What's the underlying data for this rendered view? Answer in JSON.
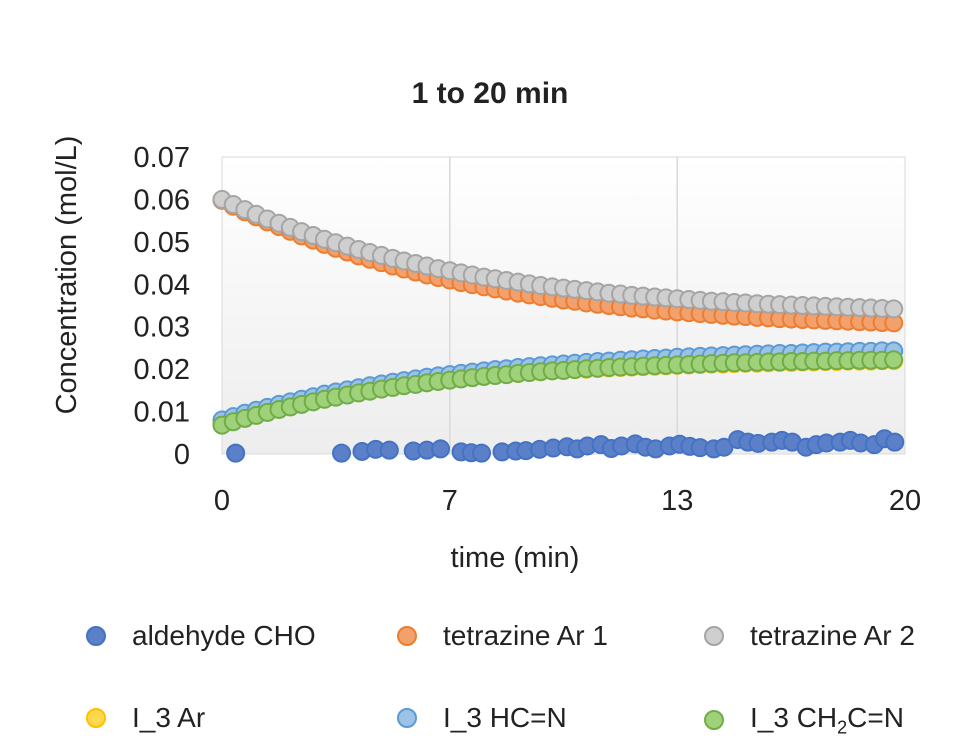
{
  "chart_data": {
    "type": "scatter",
    "title": "1 to 20 min",
    "xlabel": "time (min)",
    "ylabel": "Concentration (mol/L)",
    "xlim": [
      0,
      20
    ],
    "ylim": [
      0,
      0.07
    ],
    "xticks": [
      "0",
      "7",
      "13",
      "20"
    ],
    "xtick_values": [
      0,
      6.67,
      13.33,
      20
    ],
    "yticks": [
      "0",
      "0.01",
      "0.02",
      "0.03",
      "0.04",
      "0.05",
      "0.06",
      "0.07"
    ],
    "ytick_values": [
      0,
      0.01,
      0.02,
      0.03,
      0.04,
      0.05,
      0.06,
      0.07
    ],
    "grid": true,
    "legend_position": "bottom",
    "series": [
      {
        "name": "aldehyde CHO",
        "color": "#4472c4",
        "x": [
          0.4,
          3.5,
          4.1,
          4.5,
          4.9,
          5.6,
          6.0,
          6.4,
          7.0,
          7.3,
          7.6,
          8.2,
          8.6,
          8.9,
          9.3,
          9.7,
          10.1,
          10.4,
          10.7,
          11.1,
          11.4,
          11.7,
          12.1,
          12.4,
          12.7,
          13.1,
          13.4,
          13.7,
          14.0,
          14.4,
          14.7,
          15.1,
          15.4,
          15.7,
          16.1,
          16.4,
          16.7,
          17.1,
          17.4,
          17.7,
          18.1,
          18.4,
          18.7,
          19.1,
          19.4,
          19.7
        ],
        "y": [
          0.0002,
          0.0002,
          0.0006,
          0.0011,
          0.0009,
          0.0007,
          0.0009,
          0.0012,
          0.0005,
          0.0003,
          0.0002,
          0.0005,
          0.0007,
          0.0008,
          0.0011,
          0.0014,
          0.0017,
          0.0012,
          0.0019,
          0.0022,
          0.0013,
          0.0019,
          0.0024,
          0.0016,
          0.0012,
          0.0019,
          0.0023,
          0.0018,
          0.0015,
          0.0012,
          0.0016,
          0.0034,
          0.0028,
          0.0025,
          0.0028,
          0.0032,
          0.0028,
          0.0016,
          0.0022,
          0.0026,
          0.0028,
          0.0032,
          0.0026,
          0.0022,
          0.0036,
          0.0028
        ]
      },
      {
        "name": "tetrazine Ar 1",
        "color": "#ed7d31",
        "x": [
          0.0,
          0.33,
          0.67,
          1.0,
          1.33,
          1.67,
          2.0,
          2.33,
          2.67,
          3.0,
          3.33,
          3.67,
          4.0,
          4.33,
          4.67,
          5.0,
          5.33,
          5.67,
          6.0,
          6.33,
          6.67,
          7.0,
          7.33,
          7.67,
          8.0,
          8.33,
          8.67,
          9.0,
          9.33,
          9.67,
          10.0,
          10.33,
          10.67,
          11.0,
          11.33,
          11.67,
          12.0,
          12.33,
          12.67,
          13.0,
          13.33,
          13.67,
          14.0,
          14.33,
          14.67,
          15.0,
          15.33,
          15.67,
          16.0,
          16.33,
          16.67,
          17.0,
          17.33,
          17.67,
          18.0,
          18.33,
          18.67,
          19.0,
          19.33,
          19.67
        ],
        "y": [
          0.0598,
          0.0584,
          0.0571,
          0.0559,
          0.0547,
          0.0536,
          0.0525,
          0.0514,
          0.0504,
          0.0494,
          0.0485,
          0.0476,
          0.0467,
          0.0459,
          0.0451,
          0.0443,
          0.0436,
          0.0429,
          0.0422,
          0.0416,
          0.041,
          0.0404,
          0.0399,
          0.0394,
          0.0389,
          0.0384,
          0.0379,
          0.0375,
          0.0371,
          0.0367,
          0.0363,
          0.036,
          0.0356,
          0.0353,
          0.035,
          0.0347,
          0.0344,
          0.0342,
          0.0339,
          0.0337,
          0.0335,
          0.0333,
          0.0331,
          0.0329,
          0.0327,
          0.0325,
          0.0324,
          0.0322,
          0.0321,
          0.0319,
          0.0318,
          0.0317,
          0.0316,
          0.0315,
          0.0314,
          0.0313,
          0.0312,
          0.0311,
          0.031,
          0.0309
        ]
      },
      {
        "name": "tetrazine Ar 2",
        "color": "#a5a5a5",
        "x": [
          0.0,
          0.33,
          0.67,
          1.0,
          1.33,
          1.67,
          2.0,
          2.33,
          2.67,
          3.0,
          3.33,
          3.67,
          4.0,
          4.33,
          4.67,
          5.0,
          5.33,
          5.67,
          6.0,
          6.33,
          6.67,
          7.0,
          7.33,
          7.67,
          8.0,
          8.33,
          8.67,
          9.0,
          9.33,
          9.67,
          10.0,
          10.33,
          10.67,
          11.0,
          11.33,
          11.67,
          12.0,
          12.33,
          12.67,
          13.0,
          13.33,
          13.67,
          14.0,
          14.33,
          14.67,
          15.0,
          15.33,
          15.67,
          16.0,
          16.33,
          16.67,
          17.0,
          17.33,
          17.67,
          18.0,
          18.33,
          18.67,
          19.0,
          19.33,
          19.67
        ],
        "y": [
          0.06,
          0.0588,
          0.0576,
          0.0565,
          0.0554,
          0.0544,
          0.0534,
          0.0524,
          0.0515,
          0.0506,
          0.0498,
          0.049,
          0.0482,
          0.0475,
          0.0468,
          0.0461,
          0.0455,
          0.0449,
          0.0443,
          0.0437,
          0.0432,
          0.0427,
          0.0422,
          0.0417,
          0.0413,
          0.0409,
          0.0405,
          0.0401,
          0.0397,
          0.0394,
          0.0391,
          0.0388,
          0.0385,
          0.0382,
          0.0379,
          0.0377,
          0.0374,
          0.0372,
          0.037,
          0.0368,
          0.0366,
          0.0364,
          0.0362,
          0.036,
          0.0359,
          0.0357,
          0.0356,
          0.0354,
          0.0353,
          0.0352,
          0.0351,
          0.035,
          0.0349,
          0.0348,
          0.0347,
          0.0346,
          0.0345,
          0.0344,
          0.0343,
          0.0342
        ]
      },
      {
        "name": "I_3 Ar",
        "color": "#ffc000",
        "x": [
          0.0,
          0.33,
          0.67,
          1.0,
          1.33,
          1.67,
          2.0,
          2.33,
          2.67,
          3.0,
          3.33,
          3.67,
          4.0,
          4.33,
          4.67,
          5.0,
          5.33,
          5.67,
          6.0,
          6.33,
          6.67,
          7.0,
          7.33,
          7.67,
          8.0,
          8.33,
          8.67,
          9.0,
          9.33,
          9.67,
          10.0,
          10.33,
          10.67,
          11.0,
          11.33,
          11.67,
          12.0,
          12.33,
          12.67,
          13.0,
          13.33,
          13.67,
          14.0,
          14.33,
          14.67,
          15.0,
          15.33,
          15.67,
          16.0,
          16.33,
          16.67,
          17.0,
          17.33,
          17.67,
          18.0,
          18.33,
          18.67,
          19.0,
          19.33,
          19.67
        ],
        "y": [
          0.007,
          0.0078,
          0.0086,
          0.0093,
          0.01,
          0.0107,
          0.0113,
          0.0119,
          0.0125,
          0.0131,
          0.0136,
          0.0141,
          0.0146,
          0.015,
          0.0154,
          0.0158,
          0.0162,
          0.0166,
          0.0169,
          0.0172,
          0.0175,
          0.0178,
          0.0181,
          0.0183,
          0.0186,
          0.0188,
          0.019,
          0.0192,
          0.0194,
          0.0196,
          0.0197,
          0.0199,
          0.02,
          0.0202,
          0.0203,
          0.0204,
          0.0205,
          0.0206,
          0.0207,
          0.0208,
          0.0209,
          0.021,
          0.0211,
          0.0212,
          0.0212,
          0.0213,
          0.0214,
          0.0214,
          0.0215,
          0.0216,
          0.0216,
          0.0217,
          0.0217,
          0.0218,
          0.0218,
          0.0219,
          0.0219,
          0.0219,
          0.022,
          0.022
        ]
      },
      {
        "name": "I_3 HC=N",
        "color": "#5b9bd5",
        "x": [
          0.0,
          0.33,
          0.67,
          1.0,
          1.33,
          1.67,
          2.0,
          2.33,
          2.67,
          3.0,
          3.33,
          3.67,
          4.0,
          4.33,
          4.67,
          5.0,
          5.33,
          5.67,
          6.0,
          6.33,
          6.67,
          7.0,
          7.33,
          7.67,
          8.0,
          8.33,
          8.67,
          9.0,
          9.33,
          9.67,
          10.0,
          10.33,
          10.67,
          11.0,
          11.33,
          11.67,
          12.0,
          12.33,
          12.67,
          13.0,
          13.33,
          13.67,
          14.0,
          14.33,
          14.67,
          15.0,
          15.33,
          15.67,
          16.0,
          16.33,
          16.67,
          17.0,
          17.33,
          17.67,
          18.0,
          18.33,
          18.67,
          19.0,
          19.33,
          19.67
        ],
        "y": [
          0.008,
          0.0088,
          0.0096,
          0.0103,
          0.011,
          0.0117,
          0.0123,
          0.0129,
          0.0135,
          0.0141,
          0.0146,
          0.0151,
          0.0156,
          0.0161,
          0.0165,
          0.0169,
          0.0173,
          0.0177,
          0.0181,
          0.0184,
          0.0187,
          0.019,
          0.0193,
          0.0196,
          0.0199,
          0.0201,
          0.0204,
          0.0206,
          0.0208,
          0.021,
          0.0212,
          0.0214,
          0.0216,
          0.0218,
          0.0219,
          0.0221,
          0.0222,
          0.0224,
          0.0225,
          0.0226,
          0.0228,
          0.0229,
          0.023,
          0.0231,
          0.0232,
          0.0233,
          0.0234,
          0.0235,
          0.0236,
          0.0237,
          0.0237,
          0.0238,
          0.0239,
          0.024,
          0.024,
          0.0241,
          0.0242,
          0.0242,
          0.0243,
          0.0243
        ]
      },
      {
        "name": "I_3 CH2C=N",
        "color": "#70ad47",
        "x": [
          0.0,
          0.33,
          0.67,
          1.0,
          1.33,
          1.67,
          2.0,
          2.33,
          2.67,
          3.0,
          3.33,
          3.67,
          4.0,
          4.33,
          4.67,
          5.0,
          5.33,
          5.67,
          6.0,
          6.33,
          6.67,
          7.0,
          7.33,
          7.67,
          8.0,
          8.33,
          8.67,
          9.0,
          9.33,
          9.67,
          10.0,
          10.33,
          10.67,
          11.0,
          11.33,
          11.67,
          12.0,
          12.33,
          12.67,
          13.0,
          13.33,
          13.67,
          14.0,
          14.33,
          14.67,
          15.0,
          15.33,
          15.67,
          16.0,
          16.33,
          16.67,
          17.0,
          17.33,
          17.67,
          18.0,
          18.33,
          18.67,
          19.0,
          19.33,
          19.67
        ],
        "y": [
          0.0068,
          0.0076,
          0.0084,
          0.0091,
          0.0098,
          0.0105,
          0.0111,
          0.0117,
          0.0123,
          0.0129,
          0.0134,
          0.0139,
          0.0144,
          0.0148,
          0.0153,
          0.0157,
          0.0161,
          0.0164,
          0.0168,
          0.0171,
          0.0174,
          0.0177,
          0.018,
          0.0183,
          0.0185,
          0.0187,
          0.019,
          0.0192,
          0.0194,
          0.0196,
          0.0197,
          0.0199,
          0.0201,
          0.0202,
          0.0204,
          0.0205,
          0.0206,
          0.0207,
          0.0208,
          0.0209,
          0.021,
          0.0211,
          0.0212,
          0.0213,
          0.0214,
          0.0215,
          0.0215,
          0.0216,
          0.0217,
          0.0217,
          0.0218,
          0.0218,
          0.0219,
          0.0219,
          0.022,
          0.022,
          0.0221,
          0.0221,
          0.0221,
          0.0222
        ]
      }
    ]
  },
  "legend": [
    {
      "label": "aldehyde CHO",
      "color": "#4472c4",
      "fill": "#5b80c8"
    },
    {
      "label": "tetrazine Ar 1",
      "color": "#ed7d31",
      "fill": "#f2a06c"
    },
    {
      "label": "tetrazine Ar 2",
      "color": "#a5a5a5",
      "fill": "#cfcfcf"
    },
    {
      "label": "I_3 Ar",
      "color": "#ffc000",
      "fill": "#ffd84d"
    },
    {
      "label": "I_3 HC=N",
      "color": "#5b9bd5",
      "fill": "#9cc3e6"
    },
    {
      "label": "I_3 CH",
      "sub": "2",
      "label_rest": "C=N",
      "color": "#70ad47",
      "fill": "#9fd07a"
    }
  ]
}
